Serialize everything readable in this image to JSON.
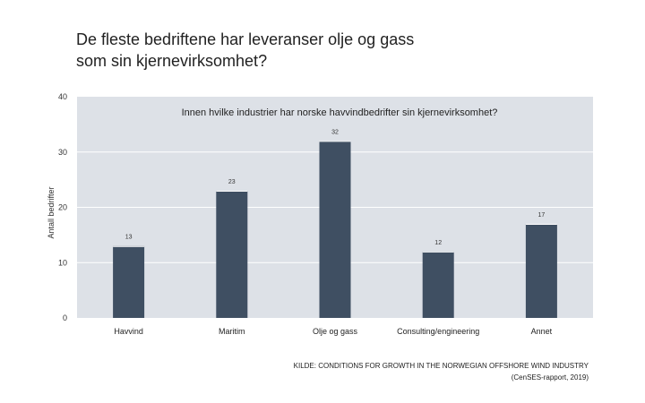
{
  "slide": {
    "title_line1": "De fleste bedriftene har leveranser olje og gass",
    "title_line2": "som sin kjernevirksomhet?"
  },
  "chart_data": {
    "type": "bar",
    "title": "Innen hvilke industrier har norske havvindbedrifter sin kjernevirksomhet?",
    "xlabel": "",
    "ylabel": "Antall bedrifter",
    "categories": [
      "Havvind",
      "Maritim",
      "Olje og gass",
      "Consulting/engineering",
      "Annet"
    ],
    "values": [
      13,
      23,
      32,
      12,
      17
    ],
    "data_labels": [
      "13",
      "23",
      "32",
      "12",
      "17"
    ],
    "ylim": [
      0,
      40
    ],
    "yticks": [
      "0",
      "10",
      "20",
      "30",
      "40"
    ],
    "grid": true,
    "colors": {
      "bar": "#3f4f62",
      "plot_bg": "#dde1e7",
      "grid": "#ffffff"
    }
  },
  "source": {
    "line1": "KILDE: CONDITIONS FOR GROWTH IN THE NORWEGIAN OFFSHORE WIND INDUSTRY",
    "line2": "(CenSES-rapport, 2019)"
  }
}
